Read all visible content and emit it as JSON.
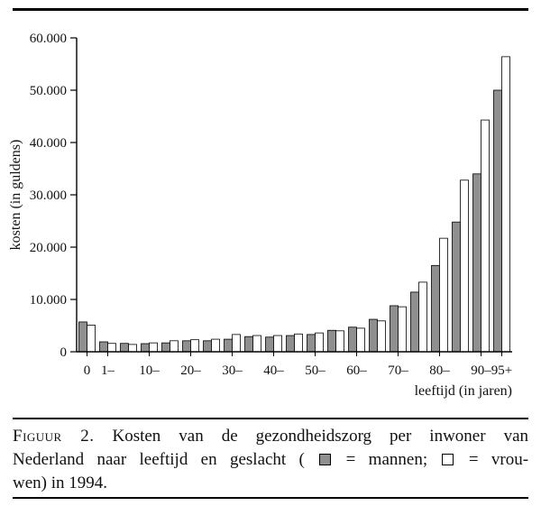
{
  "chart_data": {
    "type": "bar",
    "title": "",
    "ylabel": "kosten (in guldens)",
    "xlabel": "leeftijd (in jaren)",
    "ylim": [
      0,
      60000
    ],
    "grid": false,
    "legend_position": "in-caption",
    "categories": [
      "0",
      "1–4",
      "5–9",
      "10–14",
      "15–19",
      "20–24",
      "25–29",
      "30–34",
      "35–39",
      "40–44",
      "45–49",
      "50–54",
      "55–59",
      "60–64",
      "65–69",
      "70–74",
      "75–79",
      "80–84",
      "85–89",
      "90–94",
      "95+"
    ],
    "yticks": [
      {
        "value": 0,
        "label": "0"
      },
      {
        "value": 10000,
        "label": "10.000"
      },
      {
        "value": 20000,
        "label": "20.000"
      },
      {
        "value": 30000,
        "label": "30.000"
      },
      {
        "value": 40000,
        "label": "40.000"
      },
      {
        "value": 50000,
        "label": "50.000"
      },
      {
        "value": 60000,
        "label": "60.000"
      }
    ],
    "xticks": [
      {
        "index": 0,
        "label": "0"
      },
      {
        "index": 1,
        "label": "1–"
      },
      {
        "index": 3,
        "label": "10–"
      },
      {
        "index": 5,
        "label": "20–"
      },
      {
        "index": 7,
        "label": "30–"
      },
      {
        "index": 9,
        "label": "40–"
      },
      {
        "index": 11,
        "label": "50–"
      },
      {
        "index": 13,
        "label": "60–"
      },
      {
        "index": 15,
        "label": "70–"
      },
      {
        "index": 17,
        "label": "80–"
      },
      {
        "index": 19,
        "label": "90–"
      },
      {
        "index": 20,
        "label": "95+"
      }
    ],
    "series": [
      {
        "name": "mannen",
        "fill": "#8f8f8f",
        "values": [
          5700,
          1900,
          1600,
          1550,
          1700,
          2100,
          2100,
          2400,
          2900,
          2800,
          3100,
          3300,
          4100,
          4700,
          6200,
          8800,
          11400,
          16500,
          24800,
          34000,
          50000
        ]
      },
      {
        "name": "vrouwen",
        "fill": "#ffffff",
        "values": [
          5100,
          1600,
          1400,
          1700,
          2100,
          2300,
          2400,
          3300,
          3100,
          3100,
          3400,
          3600,
          4000,
          4500,
          5900,
          8600,
          13300,
          21700,
          32800,
          44300,
          56400
        ]
      }
    ]
  },
  "caption": {
    "label": "Figuur 2.",
    "line1_rest": "Kosten van de gezondheidszorg per inwoner van",
    "line2_pre": "Nederland naar leeftijd en geslacht (",
    "line2_mid": "= mannen;",
    "line2_post": "= vrou-",
    "line3": "wen) in 1994.",
    "legend": {
      "mannen": "mannen",
      "vrouwen": "vrouwen"
    }
  },
  "colors": {
    "bar_mannen": "#8f8f8f",
    "bar_vrouwen": "#ffffff",
    "axis": "#000000",
    "text": "#111111"
  }
}
